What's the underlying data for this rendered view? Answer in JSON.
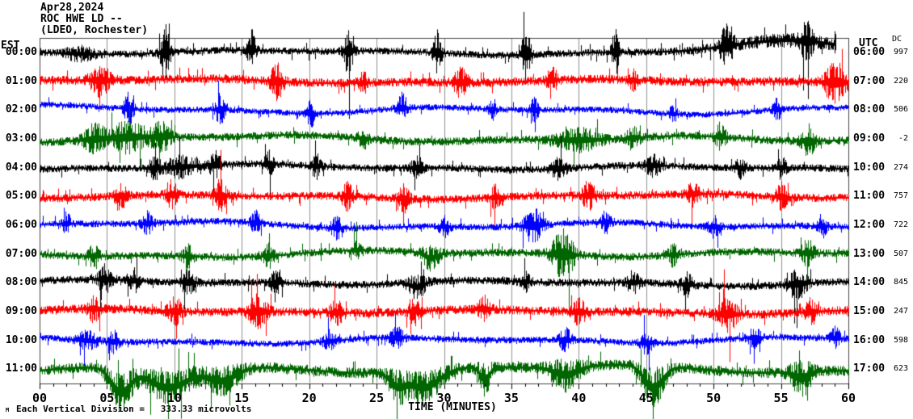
{
  "header": {
    "date": "Apr28,2024",
    "station": "ROC HWE LD --",
    "location": "(LDEO, Rochester)"
  },
  "left_axis": {
    "label": "EST"
  },
  "right_axis": {
    "label": "UTC",
    "dc_header": "DC"
  },
  "xaxis": {
    "title": "TIME (MINUTES)",
    "tick_labels": [
      "00",
      "05",
      "10",
      "15",
      "20",
      "25",
      "30",
      "35",
      "40",
      "45",
      "50",
      "55",
      "60"
    ],
    "minor_tick_every_minutes": 1,
    "major_tick_every_minutes": 5
  },
  "footer": {
    "scale_text": "Each Vertical Division =   333.33 microvolts",
    "corner_mark": "M"
  },
  "colors": {
    "background": "#ffffff",
    "frame": "#444444",
    "grid": "#909090",
    "tick": "#000000",
    "trace_cycle": [
      "#000000",
      "#ff0000",
      "#0000ff",
      "#006600"
    ]
  },
  "chart_data": {
    "type": "line",
    "kind": "helicorder-seismogram",
    "title": "ROC HWE LD -- (LDEO, Rochester) Apr28,2024",
    "xlabel": "TIME (MINUTES)",
    "x_range_minutes": [
      0,
      60
    ],
    "rows_are_hours": true,
    "vertical_division_microvolts": "333.33",
    "grid": "vertical-5min",
    "rows": [
      {
        "est": "00:00",
        "utc": "06:00",
        "dc": "997",
        "color": "#000000",
        "amp": 4.5,
        "wander": 2,
        "end": 59.1,
        "bursts": [
          {
            "t": 3,
            "w": 1.2,
            "a": 1.5
          },
          {
            "t": 9.3,
            "w": 0.35,
            "a": 7
          },
          {
            "t": 15.7,
            "w": 0.3,
            "a": 5.5
          },
          {
            "t": 22.9,
            "w": 0.35,
            "a": 6.5
          },
          {
            "t": 29.5,
            "w": 0.3,
            "a": 5.5
          },
          {
            "t": 36.1,
            "w": 0.35,
            "a": 6.5
          },
          {
            "t": 42.7,
            "w": 0.3,
            "a": 5.5
          },
          {
            "t": 51,
            "w": 0.5,
            "a": 6
          },
          {
            "t": 56.9,
            "w": 0.4,
            "a": 5
          },
          {
            "t": 56,
            "w": 6,
            "a": 1,
            "sk": -13
          }
        ]
      },
      {
        "est": "01:00",
        "utc": "07:00",
        "dc": "220",
        "color": "#ff0000",
        "amp": 5.5,
        "wander": 2,
        "bursts": [
          {
            "t": 4.5,
            "w": 0.8,
            "a": 3
          },
          {
            "t": 17.6,
            "w": 0.5,
            "a": 3.5
          },
          {
            "t": 24,
            "w": 0.3,
            "a": 2
          },
          {
            "t": 31.2,
            "w": 0.5,
            "a": 3
          },
          {
            "t": 38,
            "w": 0.4,
            "a": 2.5
          },
          {
            "t": 44,
            "w": 0.3,
            "a": 2
          },
          {
            "t": 59,
            "w": 0.8,
            "a": 4.5
          }
        ]
      },
      {
        "est": "02:00",
        "utc": "08:00",
        "dc": "506",
        "color": "#0000ff",
        "amp": 3.8,
        "wander": 3.5,
        "bursts": [
          {
            "t": 6.6,
            "w": 0.35,
            "a": 5
          },
          {
            "t": 13.4,
            "w": 0.35,
            "a": 5
          },
          {
            "t": 20.1,
            "w": 0.3,
            "a": 4.5
          },
          {
            "t": 26.9,
            "w": 0.35,
            "a": 4.5
          },
          {
            "t": 33.6,
            "w": 0.3,
            "a": 3
          },
          {
            "t": 36.7,
            "w": 0.3,
            "a": 4
          },
          {
            "t": 47,
            "w": 0.3,
            "a": 2.5
          },
          {
            "t": 54.7,
            "w": 0.3,
            "a": 3.5
          }
        ]
      },
      {
        "est": "03:00",
        "utc": "09:00",
        "dc": "-2",
        "color": "#006600",
        "amp": 5,
        "wander": 3,
        "bursts": [
          {
            "t": 4,
            "w": 0.8,
            "a": 3
          },
          {
            "t": 6.5,
            "w": 1.5,
            "a": 3.5
          },
          {
            "t": 9,
            "w": 0.7,
            "a": 3
          },
          {
            "t": 24,
            "w": 0.4,
            "a": 2
          },
          {
            "t": 40,
            "w": 1.6,
            "a": 2.5
          },
          {
            "t": 44,
            "w": 0.5,
            "a": 2.5
          },
          {
            "t": 50.5,
            "w": 0.4,
            "a": 3
          },
          {
            "t": 57,
            "w": 0.5,
            "a": 3.5
          }
        ]
      },
      {
        "est": "04:00",
        "utc": "10:00",
        "dc": "274",
        "color": "#000000",
        "amp": 4.5,
        "wander": 2.5,
        "bursts": [
          {
            "t": 8.5,
            "w": 0.5,
            "a": 2.5
          },
          {
            "t": 10.5,
            "w": 1.2,
            "a": 2.5
          },
          {
            "t": 13,
            "w": 0.4,
            "a": 3.5
          },
          {
            "t": 17,
            "w": 0.35,
            "a": 3
          },
          {
            "t": 20.5,
            "w": 0.35,
            "a": 3
          },
          {
            "t": 28,
            "w": 0.45,
            "a": 3
          },
          {
            "t": 38.5,
            "w": 0.5,
            "a": 3
          },
          {
            "t": 45.5,
            "w": 0.6,
            "a": 2.5
          },
          {
            "t": 52,
            "w": 0.4,
            "a": 2.5
          },
          {
            "t": 55,
            "w": 0.4,
            "a": 2.5
          }
        ]
      },
      {
        "est": "05:00",
        "utc": "11:00",
        "dc": "757",
        "color": "#ff0000",
        "amp": 5,
        "wander": 2,
        "bursts": [
          {
            "t": 6,
            "w": 0.4,
            "a": 3
          },
          {
            "t": 9.8,
            "w": 0.4,
            "a": 3
          },
          {
            "t": 13.4,
            "w": 0.45,
            "a": 3.5
          },
          {
            "t": 22.8,
            "w": 0.4,
            "a": 3
          },
          {
            "t": 27,
            "w": 0.4,
            "a": 3
          },
          {
            "t": 33.8,
            "w": 0.4,
            "a": 2.5
          },
          {
            "t": 40.7,
            "w": 0.5,
            "a": 3
          },
          {
            "t": 48.5,
            "w": 0.5,
            "a": 2.5
          },
          {
            "t": 55,
            "w": 0.45,
            "a": 3
          }
        ]
      },
      {
        "est": "06:00",
        "utc": "12:00",
        "dc": "722",
        "color": "#0000ff",
        "amp": 4.2,
        "wander": 3,
        "bursts": [
          {
            "t": 2,
            "w": 0.3,
            "a": 3
          },
          {
            "t": 8,
            "w": 0.4,
            "a": 3
          },
          {
            "t": 16,
            "w": 0.35,
            "a": 3
          },
          {
            "t": 22,
            "w": 0.4,
            "a": 3
          },
          {
            "t": 30,
            "w": 0.4,
            "a": 2.5
          },
          {
            "t": 36.6,
            "w": 0.7,
            "a": 4.8
          },
          {
            "t": 42,
            "w": 0.4,
            "a": 3
          },
          {
            "t": 50,
            "w": 0.4,
            "a": 3
          },
          {
            "t": 58,
            "w": 0.35,
            "a": 3.2
          }
        ]
      },
      {
        "est": "07:00",
        "utc": "13:00",
        "dc": "507",
        "color": "#006600",
        "amp": 4.8,
        "wander": 3,
        "bursts": [
          {
            "t": 4,
            "w": 0.4,
            "a": 2.5
          },
          {
            "t": 11,
            "w": 0.4,
            "a": 2.5
          },
          {
            "t": 17,
            "w": 0.4,
            "a": 2.5
          },
          {
            "t": 23.5,
            "w": 0.3,
            "a": 2
          },
          {
            "t": 29,
            "w": 0.7,
            "a": 2.5,
            "sk": 7
          },
          {
            "t": 38.8,
            "w": 0.8,
            "a": 6
          },
          {
            "t": 47,
            "w": 0.4,
            "a": 2.5
          },
          {
            "t": 57,
            "w": 0.5,
            "a": 3
          }
        ]
      },
      {
        "est": "08:00",
        "utc": "14:00",
        "dc": "845",
        "color": "#000000",
        "amp": 4.8,
        "wander": 2.5,
        "bursts": [
          {
            "t": 4.8,
            "w": 0.5,
            "a": 3.2
          },
          {
            "t": 7,
            "w": 0.4,
            "a": 2.5
          },
          {
            "t": 11,
            "w": 0.5,
            "a": 3
          },
          {
            "t": 17.5,
            "w": 0.4,
            "a": 2.5
          },
          {
            "t": 28,
            "w": 0.7,
            "a": 2.5,
            "sk": 6
          },
          {
            "t": 36,
            "w": 0.4,
            "a": 2
          },
          {
            "t": 44,
            "w": 0.45,
            "a": 2.5
          },
          {
            "t": 48,
            "w": 0.45,
            "a": 2.5
          },
          {
            "t": 56.2,
            "w": 0.7,
            "a": 3.5
          }
        ]
      },
      {
        "est": "09:00",
        "utc": "15:00",
        "dc": "247",
        "color": "#ff0000",
        "amp": 5.5,
        "wander": 2,
        "bursts": [
          {
            "t": 4,
            "w": 0.45,
            "a": 2.5
          },
          {
            "t": 10,
            "w": 0.5,
            "a": 2.8
          },
          {
            "t": 16.2,
            "w": 0.7,
            "a": 3.5
          },
          {
            "t": 22,
            "w": 0.45,
            "a": 2.5
          },
          {
            "t": 27.8,
            "w": 0.45,
            "a": 2.5
          },
          {
            "t": 33,
            "w": 0.45,
            "a": 2.5
          },
          {
            "t": 40,
            "w": 0.5,
            "a": 2.5
          },
          {
            "t": 51,
            "w": 0.7,
            "a": 3.5
          },
          {
            "t": 57.2,
            "w": 0.45,
            "a": 2.5
          }
        ]
      },
      {
        "est": "10:00",
        "utc": "16:00",
        "dc": "598",
        "color": "#0000ff",
        "amp": 4,
        "wander": 3,
        "bursts": [
          {
            "t": 3.5,
            "w": 0.8,
            "a": 2.5
          },
          {
            "t": 5.5,
            "w": 0.4,
            "a": 3
          },
          {
            "t": 21.5,
            "w": 0.5,
            "a": 2.2
          },
          {
            "t": 26.5,
            "w": 0.5,
            "a": 3
          },
          {
            "t": 39,
            "w": 0.45,
            "a": 3.5
          },
          {
            "t": 45,
            "w": 0.45,
            "a": 3
          },
          {
            "t": 53,
            "w": 0.45,
            "a": 3
          },
          {
            "t": 59,
            "w": 0.4,
            "a": 3
          }
        ]
      },
      {
        "est": "11:00",
        "utc": "17:00",
        "dc": "623",
        "color": "#006600",
        "amp": 6.5,
        "wander": 3.5,
        "bursts": [
          {
            "t": 6,
            "w": 1,
            "a": 2.8,
            "sk": 30
          },
          {
            "t": 9.5,
            "w": 2,
            "a": 2.2,
            "sk": 24
          },
          {
            "t": 13.5,
            "w": 1.5,
            "a": 2,
            "sk": 16
          },
          {
            "t": 26.5,
            "w": 0.8,
            "a": 2,
            "sk": 14
          },
          {
            "t": 28.5,
            "w": 1.6,
            "a": 2.2,
            "sk": 22
          },
          {
            "t": 33,
            "w": 0.5,
            "a": 2.5,
            "sk": 15
          },
          {
            "t": 39,
            "w": 1.2,
            "a": 2.4,
            "sk": 10
          },
          {
            "t": 45.5,
            "w": 1,
            "a": 3,
            "sk": 28
          },
          {
            "t": 56.5,
            "w": 0.8,
            "a": 3,
            "sk": 8
          }
        ]
      }
    ]
  }
}
